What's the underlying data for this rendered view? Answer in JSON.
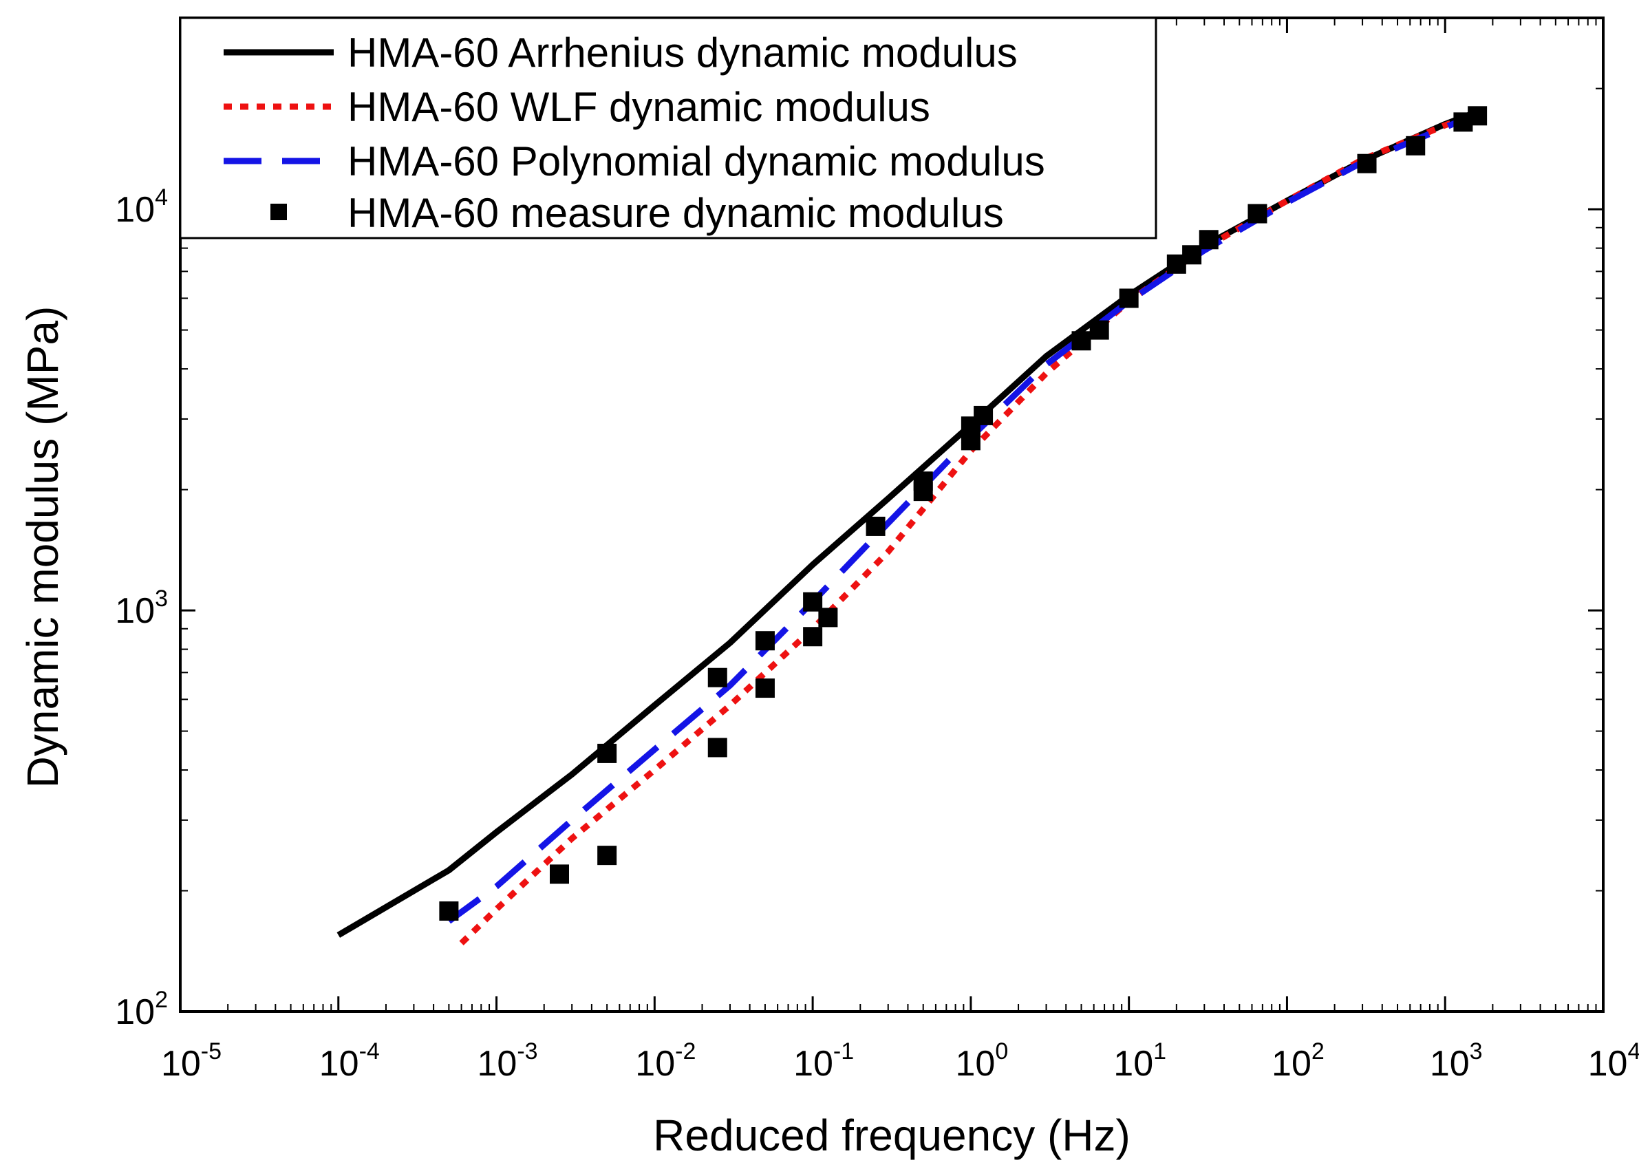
{
  "chart_data": {
    "type": "scatter",
    "xscale": "log",
    "yscale": "log",
    "xlabel": "Reduced frequency (Hz)",
    "ylabel": "Dynamic modulus (MPa)",
    "xlim": [
      1e-05,
      10000
    ],
    "ylim": [
      100,
      30000
    ],
    "legend_position": "top-left",
    "x_ticks": [
      {
        "value": 1e-05,
        "base": "10",
        "exp": "-5"
      },
      {
        "value": 0.0001,
        "base": "10",
        "exp": "-4"
      },
      {
        "value": 0.001,
        "base": "10",
        "exp": "-3"
      },
      {
        "value": 0.01,
        "base": "10",
        "exp": "-2"
      },
      {
        "value": 0.1,
        "base": "10",
        "exp": "-1"
      },
      {
        "value": 1,
        "base": "10",
        "exp": "0"
      },
      {
        "value": 10,
        "base": "10",
        "exp": "1"
      },
      {
        "value": 100,
        "base": "10",
        "exp": "2"
      },
      {
        "value": 1000,
        "base": "10",
        "exp": "3"
      },
      {
        "value": 10000,
        "base": "10",
        "exp": "4"
      }
    ],
    "y_ticks": [
      {
        "value": 100,
        "base": "10",
        "exp": "2"
      },
      {
        "value": 1000,
        "base": "10",
        "exp": "3"
      },
      {
        "value": 10000,
        "base": "10",
        "exp": "4"
      }
    ],
    "series": [
      {
        "name": "HMA-60 Arrhenius dynamic modulus",
        "style": "solid",
        "color": "#000000",
        "x": [
          0.0001,
          0.0005,
          0.001,
          0.003,
          0.01,
          0.03,
          0.1,
          0.3,
          1,
          3,
          10,
          30,
          100,
          300,
          1000,
          1600
        ],
        "y": [
          155,
          225,
          280,
          390,
          580,
          830,
          1300,
          1900,
          2900,
          4300,
          6100,
          8100,
          10500,
          13200,
          16300,
          17500
        ]
      },
      {
        "name": "HMA-60 WLF dynamic modulus",
        "style": "dotted",
        "color": "#ee1111",
        "x": [
          0.0006,
          0.001,
          0.003,
          0.01,
          0.03,
          0.1,
          0.3,
          1,
          3,
          10,
          30,
          100,
          300,
          1000,
          1600
        ],
        "y": [
          148,
          180,
          270,
          400,
          580,
          900,
          1400,
          2500,
          3900,
          5900,
          8000,
          10500,
          13300,
          16200,
          17300
        ]
      },
      {
        "name": "HMA-60 Polynomial dynamic modulus",
        "style": "dashed",
        "color": "#1414e6",
        "x": [
          0.0005,
          0.001,
          0.003,
          0.01,
          0.03,
          0.1,
          0.3,
          1,
          3,
          10,
          30,
          100,
          300,
          1000,
          1600
        ],
        "y": [
          168,
          205,
          300,
          450,
          650,
          1050,
          1650,
          2700,
          4100,
          5900,
          7900,
          10400,
          13100,
          16000,
          17300
        ]
      },
      {
        "name": "HMA-60 measure dynamic modulus",
        "style": "marker",
        "color": "#000000",
        "points": [
          {
            "x": 0.0005,
            "y": 178
          },
          {
            "x": 0.0025,
            "y": 220
          },
          {
            "x": 0.005,
            "y": 245
          },
          {
            "x": 0.005,
            "y": 440
          },
          {
            "x": 0.025,
            "y": 455
          },
          {
            "x": 0.025,
            "y": 680
          },
          {
            "x": 0.05,
            "y": 640
          },
          {
            "x": 0.05,
            "y": 840
          },
          {
            "x": 0.1,
            "y": 860
          },
          {
            "x": 0.1,
            "y": 1050
          },
          {
            "x": 0.125,
            "y": 960
          },
          {
            "x": 0.25,
            "y": 1620
          },
          {
            "x": 0.5,
            "y": 1980
          },
          {
            "x": 0.5,
            "y": 2100
          },
          {
            "x": 1,
            "y": 2650
          },
          {
            "x": 1,
            "y": 2880
          },
          {
            "x": 1.2,
            "y": 3060
          },
          {
            "x": 5,
            "y": 4700
          },
          {
            "x": 6.5,
            "y": 5000
          },
          {
            "x": 10,
            "y": 6000
          },
          {
            "x": 20,
            "y": 7300
          },
          {
            "x": 25,
            "y": 7700
          },
          {
            "x": 32,
            "y": 8400
          },
          {
            "x": 65,
            "y": 9750
          },
          {
            "x": 320,
            "y": 13000
          },
          {
            "x": 650,
            "y": 14400
          },
          {
            "x": 1300,
            "y": 16500
          },
          {
            "x": 1600,
            "y": 17100
          }
        ]
      }
    ]
  }
}
